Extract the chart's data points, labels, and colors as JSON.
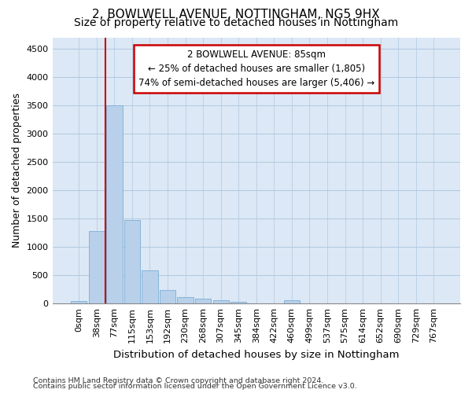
{
  "title1": "2, BOWLWELL AVENUE, NOTTINGHAM, NG5 9HX",
  "title2": "Size of property relative to detached houses in Nottingham",
  "xlabel": "Distribution of detached houses by size in Nottingham",
  "ylabel": "Number of detached properties",
  "bar_labels": [
    "0sqm",
    "38sqm",
    "77sqm",
    "115sqm",
    "153sqm",
    "192sqm",
    "230sqm",
    "268sqm",
    "307sqm",
    "345sqm",
    "384sqm",
    "422sqm",
    "460sqm",
    "499sqm",
    "537sqm",
    "575sqm",
    "614sqm",
    "652sqm",
    "690sqm",
    "729sqm",
    "767sqm"
  ],
  "bar_values": [
    40,
    1280,
    3500,
    1480,
    580,
    240,
    120,
    80,
    55,
    35,
    0,
    0,
    55,
    0,
    0,
    0,
    0,
    0,
    0,
    0,
    0
  ],
  "bar_color": "#b8d0ea",
  "bar_edge_color": "#7aaed6",
  "red_line_x": 1.5,
  "annotation_line1": "2 BOWLWELL AVENUE: 85sqm",
  "annotation_line2": "← 25% of detached houses are smaller (1,805)",
  "annotation_line3": "74% of semi-detached houses are larger (5,406) →",
  "annotation_box_color": "#ffffff",
  "annotation_box_edge": "#cc0000",
  "red_line_color": "#cc0000",
  "ylim": [
    0,
    4700
  ],
  "yticks": [
    0,
    500,
    1000,
    1500,
    2000,
    2500,
    3000,
    3500,
    4000,
    4500
  ],
  "footer1": "Contains HM Land Registry data © Crown copyright and database right 2024.",
  "footer2": "Contains public sector information licensed under the Open Government Licence v3.0.",
  "bg_color": "#ffffff",
  "plot_bg_color": "#dce8f5",
  "grid_color": "#b0c8e0",
  "title1_fontsize": 11,
  "title2_fontsize": 10,
  "ylabel_fontsize": 9,
  "xlabel_fontsize": 9.5,
  "tick_fontsize": 8,
  "ann_fontsize": 8.5,
  "footer_fontsize": 6.8
}
